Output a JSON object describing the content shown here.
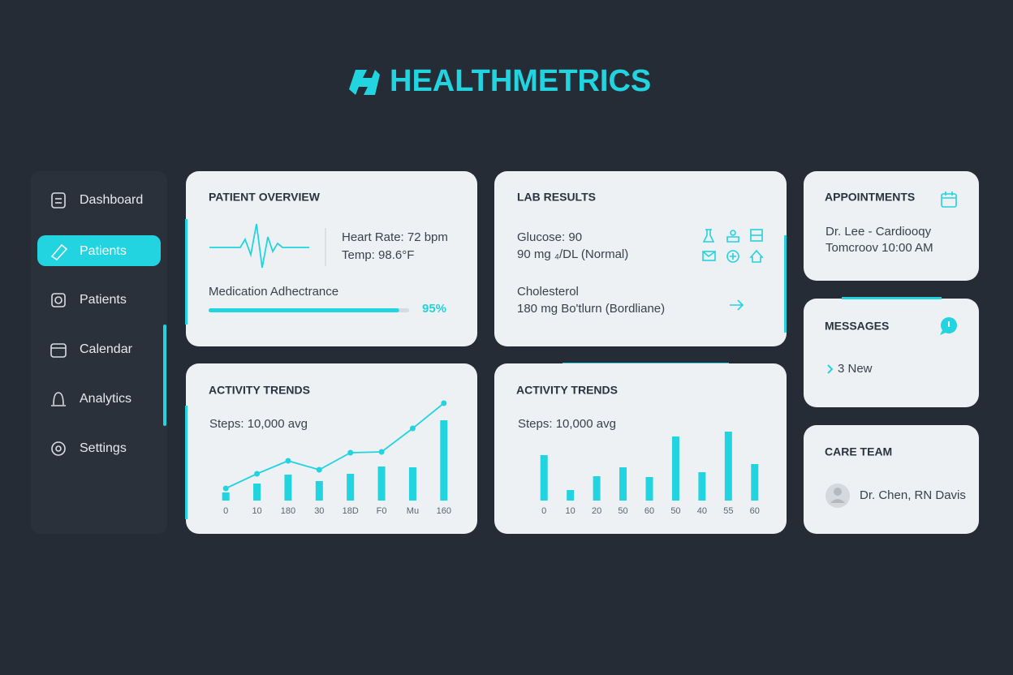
{
  "brand": "HEALTHMETRICS",
  "nav": [
    "Dashboard",
    "Patients",
    "Patients",
    "Calendar",
    "Analytics",
    "Settings"
  ],
  "patient_overview": {
    "title": "PATIENT OVERVIEW",
    "heart_rate": "Heart Rate: 72 bpm",
    "temp": "Temp: 98.6°F",
    "adherence_label": "Medication Adhectrance",
    "adherence": {
      "value": 95,
      "label": "95%"
    }
  },
  "lab_results": {
    "title": "LAB RESULTS",
    "glucose_title": "Glucose: 90",
    "glucose_detail": "90 mg ₄/DL (Normal)",
    "cholesterol_title": "Cholesterol",
    "cholesterol_detail": "180 mg Bo'tlurn (Bordliane)"
  },
  "appointments": {
    "title": "APPOINTMENTS",
    "detail": "Dr. Lee - Cardiooqy",
    "time": "Tomcroov 10:00 AM"
  },
  "messages": {
    "title": "MESSAGES",
    "count": "3 New"
  },
  "care_team": {
    "title": "CARE TEAM",
    "members": "Dr. Chen, RN Davis"
  },
  "activity_trends": [
    {
      "title": "ACTIVITY TRENDS",
      "subtitle": "Steps: 10,000 avg",
      "chart": {
        "type": "bar",
        "categories": [
          "0",
          "10",
          "180",
          "30",
          "18D",
          "F0",
          "Mu",
          "160"
        ],
        "ylim": [
          0,
          120
        ],
        "series": [
          {
            "type": "bar",
            "color": "#22d3e0",
            "values": [
              10,
              21,
              32,
              24,
              33,
              42,
              41,
              99
            ]
          },
          {
            "type": "line",
            "color": "#22d3e0",
            "values": [
              15,
              33,
              49,
              38,
              59,
              60,
              89,
              120
            ]
          }
        ]
      }
    },
    {
      "title": "ACTIVITY TRENDS",
      "subtitle": "Steps: 10,000 avg",
      "chart": {
        "type": "bar",
        "categories": [
          "0",
          "10",
          "20",
          "50",
          "60",
          "50",
          "40",
          "55",
          "60"
        ],
        "ylim": [
          0,
          120
        ],
        "series": [
          {
            "type": "bar",
            "color": "#22d3e0",
            "values": [
              56,
              13,
              30,
              41,
              29,
              79,
              35,
              85,
              45
            ]
          }
        ]
      }
    }
  ]
}
